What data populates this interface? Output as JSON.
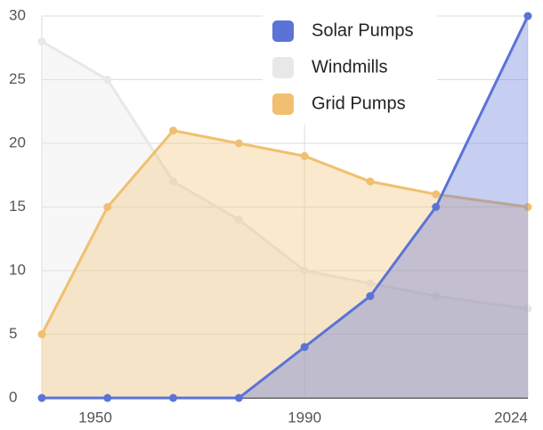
{
  "chart_data": {
    "type": "area",
    "x": [
      1950,
      1960,
      1970,
      1980,
      1990,
      2000,
      2010,
      2024
    ],
    "series": [
      {
        "name": "Windmills",
        "color": "#e8e8e8",
        "values": [
          28,
          25,
          17,
          14,
          10,
          9,
          8,
          7
        ]
      },
      {
        "name": "Grid Pumps",
        "color": "#f0c070",
        "values": [
          5,
          15,
          21,
          20,
          19,
          17,
          16,
          15
        ]
      },
      {
        "name": "Solar Pumps",
        "color": "#5b73d6",
        "values": [
          0,
          0,
          0,
          0,
          4,
          8,
          15,
          30
        ]
      }
    ],
    "legend_order": [
      "Solar Pumps",
      "Windmills",
      "Grid Pumps"
    ],
    "xlim": [
      1950,
      2024
    ],
    "xticks": [
      1950,
      1990,
      2024
    ],
    "ylim": [
      0,
      30
    ],
    "yticks": [
      0,
      5,
      10,
      15,
      20,
      25,
      30
    ],
    "grid": true,
    "legend": "top-right"
  }
}
